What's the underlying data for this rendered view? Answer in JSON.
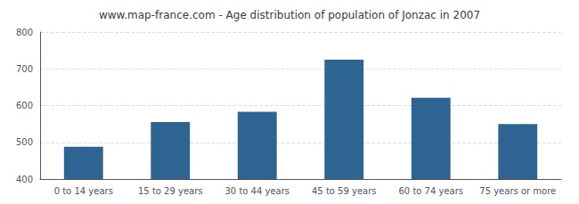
{
  "chart_data": {
    "type": "bar",
    "title": "www.map-france.com - Age distribution of population of Jonzac in 2007",
    "categories": [
      "0 to 14 years",
      "15 to 29 years",
      "30 to 44 years",
      "45 to 59 years",
      "60 to 74 years",
      "75 years or more"
    ],
    "values": [
      488,
      555,
      583,
      725,
      621,
      550
    ],
    "color": "#2e6491",
    "ylim": [
      400,
      800
    ],
    "yticks": [
      400,
      500,
      600,
      700,
      800
    ],
    "grid": true
  }
}
